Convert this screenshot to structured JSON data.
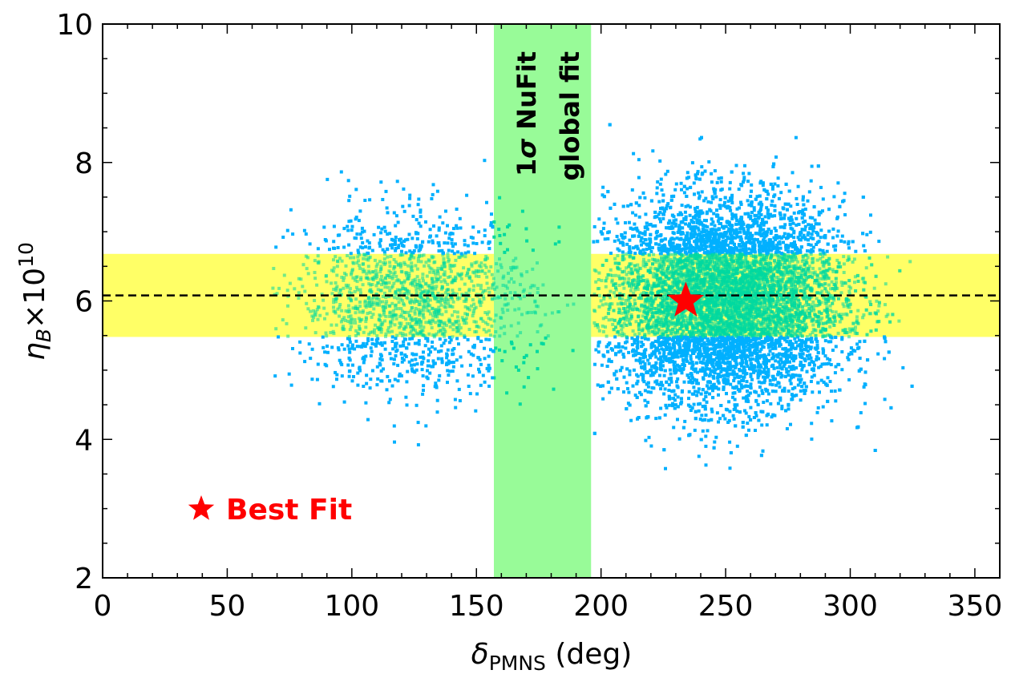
{
  "chart_data": {
    "type": "scatter",
    "xlabel": {
      "symbol": "δ",
      "subscript": "PMNS",
      "unit": " (deg)"
    },
    "ylabel": {
      "symbol": "η",
      "subscript": "B",
      "times": "×10",
      "superscript": "10"
    },
    "xlim": [
      0,
      360
    ],
    "ylim": [
      2,
      10
    ],
    "x_ticks": [
      0,
      50,
      100,
      150,
      200,
      250,
      300,
      350
    ],
    "y_ticks": [
      2,
      4,
      6,
      8,
      10
    ],
    "x_tick_labels": [
      "0",
      "50",
      "100",
      "150",
      "200",
      "250",
      "300",
      "350"
    ],
    "y_tick_labels": [
      "2",
      "4",
      "6",
      "8",
      "10"
    ],
    "grid": false,
    "colors": {
      "points": "#00b0ff",
      "points_in_band": "#00d9a0",
      "vertical_band": "#98fb98",
      "horizontal_band": "#ffff66",
      "dashed_line": "#000000",
      "best_fit": "#ff0000"
    },
    "bands": {
      "vertical": {
        "x_range": [
          157,
          196
        ],
        "label_line1": "1σ NuFit",
        "label_line2": "global fit"
      },
      "horizontal": {
        "y_range": [
          5.48,
          6.68
        ]
      }
    },
    "reference_line": {
      "y": 6.08,
      "style": "dashed"
    },
    "best_fit": {
      "x": 234,
      "y": 6.0,
      "marker": "star"
    },
    "legend": {
      "label": "Best Fit",
      "marker": "star",
      "placement": "lower-left"
    },
    "clusters": [
      {
        "x_center": 250,
        "y_center": 6.0,
        "x_extent": [
          197,
          326
        ],
        "y_extent": [
          3.55,
          8.55
        ],
        "density": "dense"
      },
      {
        "x_center": 125,
        "y_center": 6.0,
        "x_extent": [
          67,
          196
        ],
        "y_extent": [
          3.75,
          8.05
        ],
        "density": "sparse"
      }
    ]
  }
}
